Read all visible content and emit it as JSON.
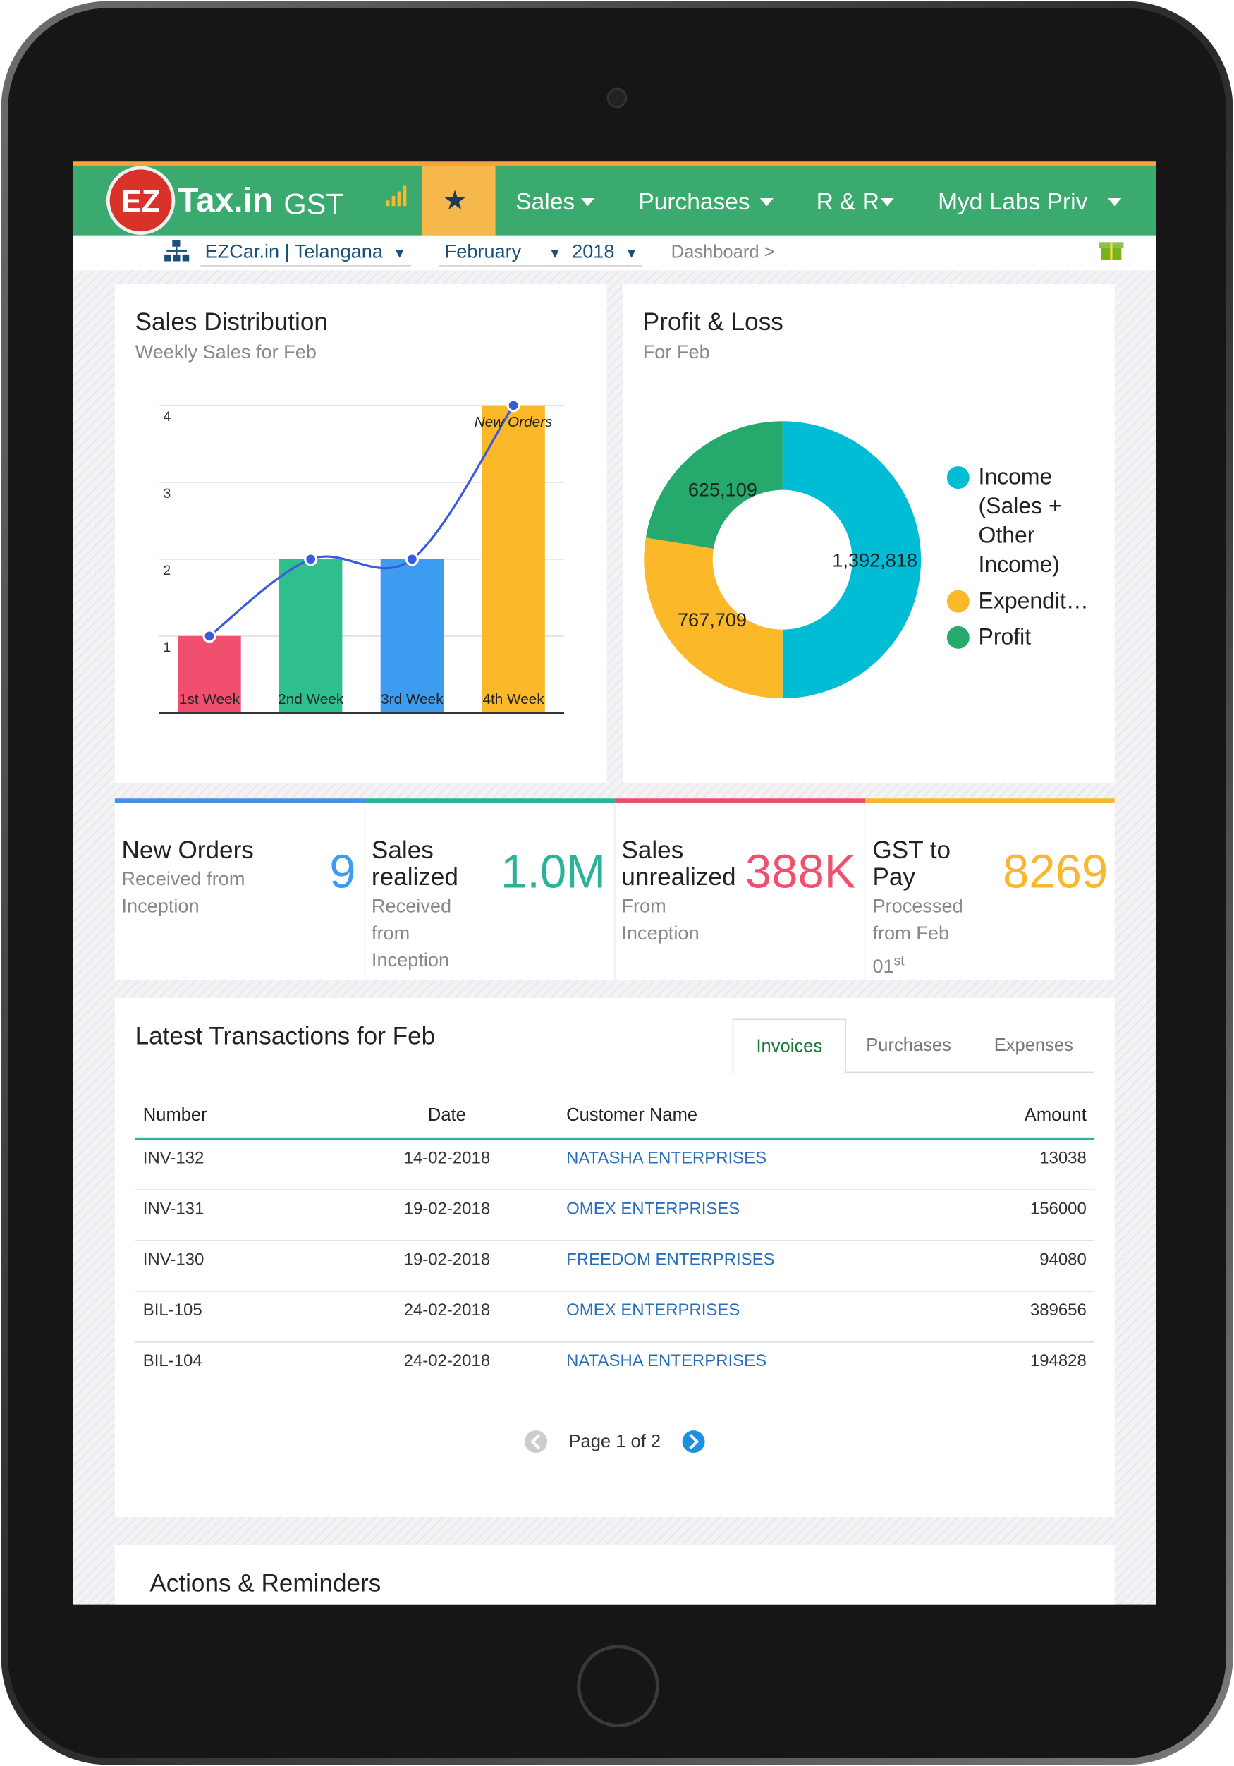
{
  "header": {
    "logo_ez": "EZ",
    "logo_tax": "Tax.in",
    "logo_gst": "GST",
    "nav": [
      "Sales",
      "Purchases",
      "R & R",
      "Myd Labs Priv"
    ]
  },
  "subbar": {
    "company": "EZCar.in | Telangana",
    "month": "February",
    "year": "2018",
    "breadcrumb": "Dashboard >"
  },
  "chart_data": [
    {
      "type": "bar",
      "title": "Sales Distribution",
      "subtitle": "Weekly Sales for Feb",
      "categories": [
        "1st Week",
        "2nd Week",
        "3rd Week",
        "4th Week"
      ],
      "values": [
        1,
        2,
        2,
        4
      ],
      "colors": [
        "#f0506e",
        "#2fbf8f",
        "#3d9bf0",
        "#fbb829"
      ],
      "ylim": [
        0,
        4
      ],
      "yticks": [
        1,
        2,
        3,
        4
      ],
      "grid": true,
      "series": [
        {
          "name": "New Orders",
          "color": "#3b5bdb",
          "values": [
            1,
            2,
            2,
            4
          ]
        }
      ]
    },
    {
      "type": "donut",
      "title": "Profit & Loss",
      "subtitle": "For Feb",
      "categories": [
        "Income (Sales + Other Income)",
        "Expendit…",
        "Profit"
      ],
      "values": [
        1392818,
        767709,
        625109
      ],
      "value_labels": [
        "1,392,818",
        "767,709",
        "625,109"
      ],
      "colors": [
        "#00bcd4",
        "#fbb829",
        "#26a96c"
      ]
    }
  ],
  "kpis": [
    {
      "title": "New Orders",
      "value": "9",
      "subtitle": "Received from Inception",
      "color": "#3d9bf0"
    },
    {
      "title": "Sales realized",
      "value": "1.0M",
      "subtitle": "Received from Inception",
      "color": "#2bb39a"
    },
    {
      "title": "Sales unrealized",
      "value": "388K",
      "subtitle": "From Inception",
      "color": "#f0506e"
    },
    {
      "title": "GST to Pay",
      "value": "8269",
      "subtitle": "Processed from Feb 01",
      "subtitle_sup": "st",
      "color": "#f7b731"
    }
  ],
  "transactions": {
    "title": "Latest Transactions for Feb",
    "tabs": [
      "Invoices",
      "Purchases",
      "Expenses"
    ],
    "columns": [
      "Number",
      "Date",
      "Customer Name",
      "Amount"
    ],
    "rows": [
      [
        "INV-132",
        "14-02-2018",
        "NATASHA ENTERPRISES",
        13038
      ],
      [
        "INV-131",
        "19-02-2018",
        "OMEX ENTERPRISES",
        156000
      ],
      [
        "INV-130",
        "19-02-2018",
        "FREEDOM ENTERPRISES",
        94080
      ],
      [
        "BIL-105",
        "24-02-2018",
        "OMEX ENTERPRISES",
        389656
      ],
      [
        "BIL-104",
        "24-02-2018",
        "NATASHA ENTERPRISES",
        194828
      ]
    ],
    "pagination": "Page 1 of 2"
  },
  "actions": {
    "title": "Actions & Reminders"
  }
}
